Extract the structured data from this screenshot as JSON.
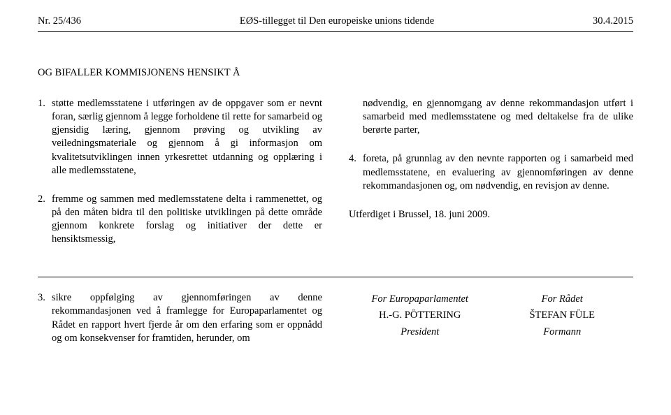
{
  "header": {
    "left": "Nr. 25/436",
    "center": "EØS-tillegget til Den europeiske unions tidende",
    "right": "30.4.2015"
  },
  "subtitle": "OG BIFALLER KOMMISJONENS HENSIKT Å",
  "left_col": {
    "items": [
      {
        "num": "1.",
        "text": "støtte medlemsstatene i utføringen av de oppgaver som er nevnt foran, særlig gjennom å legge forholdene til rette for samarbeid og gjensidig læring, gjennom prøving og utvikling av veiledningsmateriale og gjennom å gi informasjon om kvalitetsutviklingen innen yrkesrettet utdanning og opplæring i alle medlemsstatene,"
      },
      {
        "num": "2.",
        "text": "fremme og sammen med medlemsstatene delta i rammenettet, og på den måten bidra til den politiske utviklingen på dette område gjennom konkrete forslag og initiativer der dette er hensiktsmessig,"
      }
    ]
  },
  "right_col": {
    "lead": "nødvendig, en gjennomgang av denne rekommandasjon utført i samarbeid med medlemsstatene og med deltakelse fra de ulike berørte parter,",
    "items": [
      {
        "num": "4.",
        "text": "foreta, på grunnlag av den nevnte rapporten og i samarbeid med medlemsstatene, en evaluering av gjennomføringen av denne rekommandasjonen og, om nødvendig, en revisjon av denne."
      }
    ],
    "closing": "Utferdiget i Brussel, 18. juni 2009."
  },
  "lower": {
    "left": {
      "num": "3.",
      "text": "sikre oppfølging av gjennomføringen av denne rekommandasjonen ved å framlegge for Europaparlamentet og Rådet en rapport hvert fjerde år om den erfaring som er oppnådd og om konsekvenser for framtiden, herunder, om"
    },
    "sig_left": {
      "role": "For Europaparlamentet",
      "name": "H.-G. PÖTTERING",
      "title": "President"
    },
    "sig_right": {
      "role": "For Rådet",
      "name": "ŠTEFAN FÜLE",
      "title": "Formann"
    }
  }
}
